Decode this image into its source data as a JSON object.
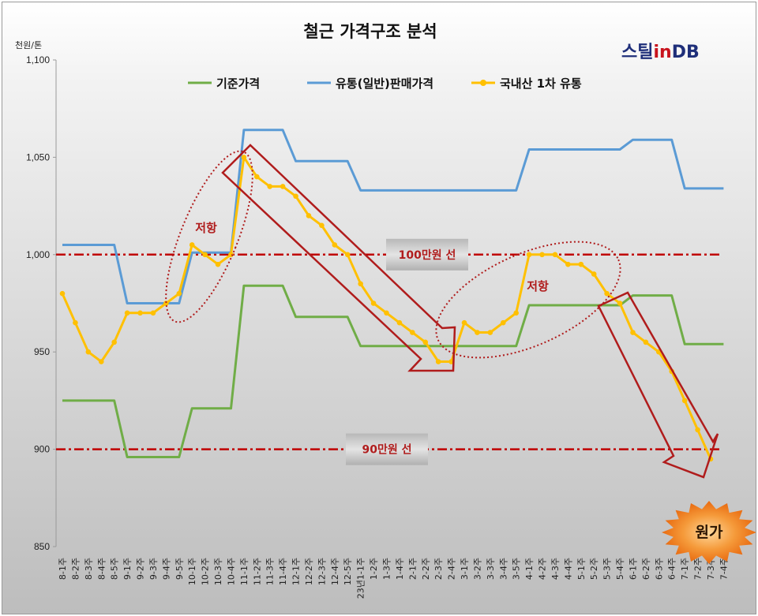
{
  "chart_data": {
    "type": "line",
    "title": "철근 가격구조 분석",
    "ylabel": "천원/톤",
    "ylim": [
      850,
      1100
    ],
    "yticks": [
      850,
      900,
      950,
      1000,
      1050,
      1100
    ],
    "grid": false,
    "legend_position": "top",
    "categories": [
      "8-1주",
      "8-2주",
      "8-3주",
      "8-4주",
      "8-5주",
      "9-1주",
      "9-2주",
      "9-3주",
      "9-4주",
      "9-5주",
      "10-1주",
      "10-2주",
      "10-3주",
      "10-4주",
      "11-1주",
      "11-2주",
      "11-3주",
      "11-4주",
      "12-1주",
      "12-2주",
      "12-3주",
      "12-4주",
      "12-5주",
      "23년1-1주",
      "1-2주",
      "1-3주",
      "1-4주",
      "2-1주",
      "2-2주",
      "2-3주",
      "2-4주",
      "3-1주",
      "3-2주",
      "3-3주",
      "3-4주",
      "3-5주",
      "4-1주",
      "4-2주",
      "4-3주",
      "4-4주",
      "5-1주",
      "5-2주",
      "5-3주",
      "5-4주",
      "6-1주",
      "6-2주",
      "6-3주",
      "6-4주",
      "7-1주",
      "7-2주",
      "7-3주",
      "7-4주"
    ],
    "series": [
      {
        "name": "기준가격",
        "color": "#70ad47",
        "values": [
          925,
          925,
          925,
          925,
          925,
          896,
          896,
          896,
          896,
          896,
          921,
          921,
          921,
          921,
          984,
          984,
          984,
          984,
          968,
          968,
          968,
          968,
          968,
          953,
          953,
          953,
          953,
          953,
          953,
          953,
          953,
          953,
          953,
          953,
          953,
          953,
          974,
          974,
          974,
          974,
          974,
          974,
          974,
          974,
          979,
          979,
          979,
          979,
          954,
          954,
          954,
          954
        ]
      },
      {
        "name": "유통(일반)판매가격",
        "color": "#5b9bd5",
        "values": [
          1005,
          1005,
          1005,
          1005,
          1005,
          975,
          975,
          975,
          975,
          975,
          1001,
          1001,
          1001,
          1001,
          1064,
          1064,
          1064,
          1064,
          1048,
          1048,
          1048,
          1048,
          1048,
          1033,
          1033,
          1033,
          1033,
          1033,
          1033,
          1033,
          1033,
          1033,
          1033,
          1033,
          1033,
          1033,
          1054,
          1054,
          1054,
          1054,
          1054,
          1054,
          1054,
          1054,
          1059,
          1059,
          1059,
          1059,
          1034,
          1034,
          1034,
          1034
        ]
      },
      {
        "name": "국내산 1차 유통",
        "color": "#ffc000",
        "values": [
          980,
          965,
          950,
          945,
          955,
          970,
          970,
          970,
          975,
          980,
          1005,
          1000,
          995,
          1000,
          1050,
          1040,
          1035,
          1035,
          1030,
          1020,
          1015,
          1005,
          1000,
          985,
          975,
          970,
          965,
          960,
          955,
          945,
          945,
          965,
          960,
          960,
          965,
          970,
          1000,
          1000,
          1000,
          995,
          995,
          990,
          980,
          975,
          960,
          955,
          950,
          940,
          925,
          910,
          895,
          null
        ]
      }
    ],
    "reference_lines": [
      {
        "value": 1000,
        "label": "100만원 선"
      },
      {
        "value": 900,
        "label": "90만원 선"
      }
    ],
    "annotations": [
      {
        "text": "저항",
        "near": "9-5주"
      },
      {
        "text": "저항",
        "near": "4-2주"
      },
      {
        "text": "원가",
        "near": "bottom-right"
      }
    ]
  },
  "logo": {
    "part1": "스틸",
    "part2": "in",
    "part3": "DB"
  },
  "colors": {
    "ref_line": "#c00000",
    "arrow": "#b01c1c",
    "cost_burst": "#f08020"
  }
}
